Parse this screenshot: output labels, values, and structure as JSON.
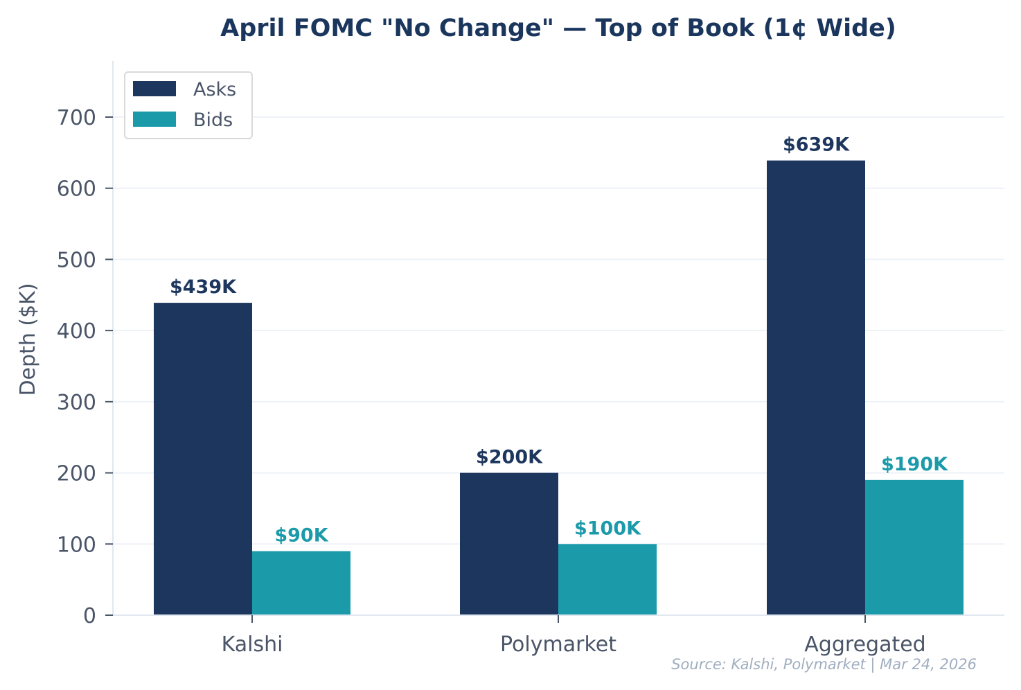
{
  "chart_data": {
    "type": "bar",
    "title": "April FOMC \"No Change\" — Top of Book (1¢ Wide)",
    "xlabel": "",
    "ylabel": "Depth ($K)",
    "categories": [
      "Kalshi",
      "Polymarket",
      "Aggregated"
    ],
    "series": [
      {
        "name": "Asks",
        "values": [
          439,
          200,
          639
        ],
        "labels": [
          "$439K",
          "$200K",
          "$639K"
        ],
        "color": "#1d365d"
      },
      {
        "name": "Bids",
        "values": [
          90,
          100,
          190
        ],
        "labels": [
          "$90K",
          "$100K",
          "$190K"
        ],
        "color": "#1b9aaa"
      }
    ],
    "ylim": [
      0,
      780
    ],
    "yticks": [
      0,
      100,
      200,
      300,
      400,
      500,
      600,
      700
    ],
    "grid": "horizontal",
    "legend_position": "top-left",
    "source_note": "Source: Kalshi, Polymarket  |  Mar 24, 2026"
  },
  "colors": {
    "title": "#1b365d",
    "text": "#4a5568",
    "grid": "#edf2f7",
    "axis": "#e2e8f0",
    "source": "#a0aec0"
  }
}
